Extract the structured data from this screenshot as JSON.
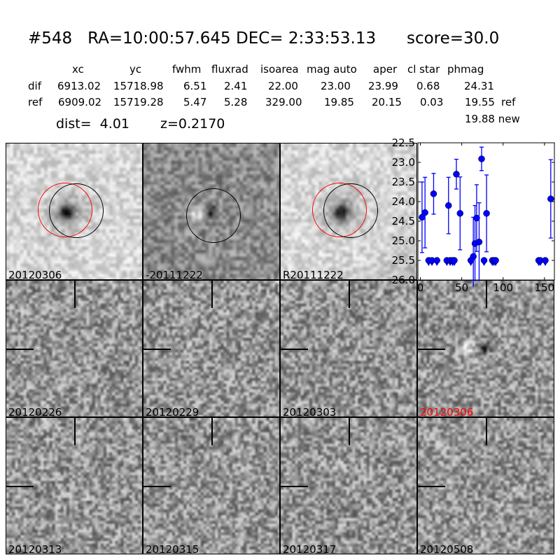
{
  "header": {
    "title": "#548   RA=10:00:57.645 DEC= 2:33:53.13      score=30.0",
    "columns": [
      "xc",
      "yc",
      "fwhm",
      "fluxrad",
      "isoarea",
      "mag auto",
      "aper",
      "cl star",
      "phmag"
    ],
    "rows": [
      {
        "label": "dif",
        "values": [
          "6913.02",
          "15718.98",
          "6.51",
          "2.41",
          "22.00",
          "23.00",
          "23.99",
          "0.68",
          "24.31"
        ],
        "suffix": ""
      },
      {
        "label": "ref",
        "values": [
          "6909.02",
          "15719.28",
          "5.47",
          "5.28",
          "329.00",
          "19.85",
          "20.15",
          "0.03",
          "19.55"
        ],
        "suffix": "ref"
      }
    ],
    "extra_phmag": "19.88 new",
    "dist": "dist=  4.01",
    "z": "z=0.2170"
  },
  "panels": [
    {
      "label": "20120306",
      "color": "#000000",
      "kind": "new"
    },
    {
      "label": "-20111222",
      "color": "#000000",
      "kind": "diff"
    },
    {
      "label": "R20111222",
      "color": "#000000",
      "kind": "ref"
    },
    {
      "label": "20120226",
      "color": "#000000",
      "kind": "epoch"
    },
    {
      "label": "20120229",
      "color": "#000000",
      "kind": "epoch"
    },
    {
      "label": "20120303",
      "color": "#000000",
      "kind": "epoch"
    },
    {
      "label": "20120306",
      "color": "#ff0000",
      "kind": "epoch"
    },
    {
      "label": "20120313",
      "color": "#000000",
      "kind": "epoch"
    },
    {
      "label": "20120315",
      "color": "#000000",
      "kind": "epoch"
    },
    {
      "label": "20120317",
      "color": "#000000",
      "kind": "epoch"
    },
    {
      "label": "20120508",
      "color": "#000000",
      "kind": "epoch"
    }
  ],
  "chart_data": {
    "type": "scatter",
    "title": "",
    "xlabel": "",
    "ylabel": "",
    "xlim": [
      -3,
      162
    ],
    "ylim": [
      26.0,
      22.5
    ],
    "y_inverted": true,
    "xticks": [
      "0",
      "50",
      "100",
      "150"
    ],
    "yticks": [
      "22.5",
      "23.0",
      "23.5",
      "24.0",
      "24.5",
      "25.0",
      "25.5",
      "26.0"
    ],
    "color": "#0000ff",
    "detections": [
      {
        "x": 2,
        "y": 24.4,
        "err": 0.9
      },
      {
        "x": 5.6,
        "y": 24.28,
        "err": 0.9
      },
      {
        "x": 16,
        "y": 23.8,
        "err": 0.52
      },
      {
        "x": 34,
        "y": 24.1,
        "err": 0.72
      },
      {
        "x": 43.5,
        "y": 23.3,
        "err": 0.38
      },
      {
        "x": 48,
        "y": 24.3,
        "err": 0.93
      },
      {
        "x": 64,
        "y": 25.4,
        "err": 1.0
      },
      {
        "x": 66,
        "y": 25.07,
        "err": 0.97
      },
      {
        "x": 68,
        "y": 24.42,
        "err": 0.85
      },
      {
        "x": 71,
        "y": 25.03,
        "err": 1.0
      },
      {
        "x": 74,
        "y": 22.91,
        "err": 0.3
      },
      {
        "x": 80,
        "y": 24.3,
        "err": 0.98
      },
      {
        "x": 157.6,
        "y": 23.93,
        "err": 1.0
      }
    ],
    "upper_limits": {
      "y": 25.5,
      "x": [
        10,
        14,
        20,
        32,
        36,
        39,
        41,
        61,
        77,
        87,
        89,
        91,
        143,
        145,
        151
      ]
    }
  }
}
